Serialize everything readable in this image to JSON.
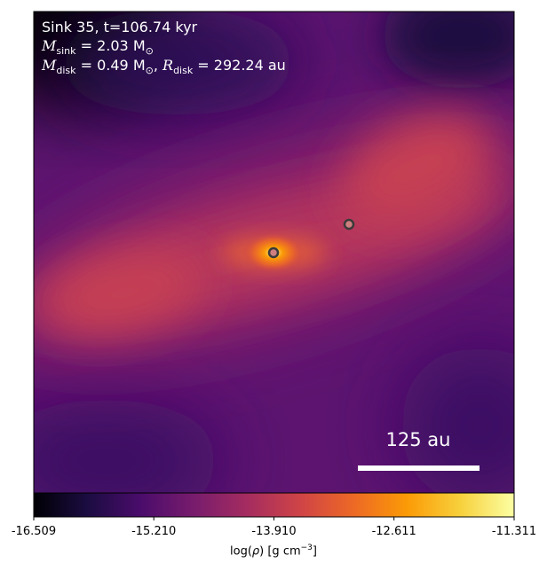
{
  "chart_data": {
    "type": "heatmap",
    "colormap": "inferno",
    "title_lines": {
      "sink_label": "Sink 35, t=106.74 kyr",
      "m_sink_symbol": "M",
      "m_sink_sub": "sink",
      "m_sink_value": " = 2.03 M",
      "m_sink_sun_sub": "⊙",
      "m_disk_symbol": "M",
      "m_disk_sub": "disk",
      "m_disk_value": " = 0.49 M",
      "m_disk_sun_sub": "⊙",
      "r_disk_sep": ", ",
      "r_disk_symbol": "R",
      "r_disk_sub": "disk",
      "r_disk_value": " = 292.24 au"
    },
    "scalebar": {
      "label": "125 au",
      "length_au": 125
    },
    "colorbar": {
      "min": -16.509,
      "max": -11.311,
      "ticks": [
        "-16.509",
        "-15.210",
        "-13.910",
        "-12.611",
        "-11.311"
      ],
      "label_prefix": "log(",
      "label_rho": "ρ",
      "label_mid": ") [g cm",
      "label_exp": "−3",
      "label_suffix": "]"
    },
    "sinks": [
      {
        "name": "primary",
        "log_rho_level": -11.8
      },
      {
        "name": "secondary",
        "log_rho_level": -14.0
      }
    ]
  },
  "colors": {
    "inferno_stops": [
      "#000004",
      "#1b0c41",
      "#4a0c6b",
      "#781c6d",
      "#a52c60",
      "#cf4446",
      "#ed6925",
      "#fb9b06",
      "#f7d13d",
      "#fcffa4"
    ],
    "sink_fill": "#ffffff",
    "sink_stroke": "#3a3a3a",
    "background_log_rho": -15.3,
    "filament_log_rho": -14.2
  }
}
